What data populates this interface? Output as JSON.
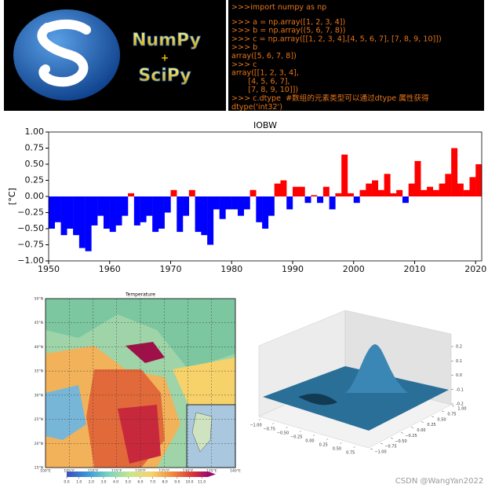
{
  "logo": {
    "name": "NumPy",
    "plus": "+",
    "name2": "SciPy"
  },
  "code": {
    "lines": [
      ">>>import numpy as np",
      ">>> a = np.array([1, 2, 3, 4])",
      ">>> b = np.array((5, 6, 7, 8))",
      ">>> c = np.array([[1, 2, 3, 4],[4, 5, 6, 7], [7, 8, 9, 10]])",
      ">>> b",
      "array([5, 6, 7, 8])",
      ">>> c",
      "array([[1, 2, 3, 4],",
      "       [4, 5, 6, 7],",
      "       [7, 8, 9, 10]])",
      ">>> c.dtype  #数组的元素类型可以通过dtype 属性获得",
      "dtype('int32')"
    ]
  },
  "watermark": "CSDN @WangYan2022",
  "chart_data": [
    {
      "type": "bar",
      "title": "IOBW",
      "y_label": "[°C]",
      "x": [
        1950,
        1951,
        1952,
        1953,
        1954,
        1955,
        1956,
        1957,
        1958,
        1959,
        1960,
        1961,
        1962,
        1963,
        1964,
        1965,
        1966,
        1967,
        1968,
        1969,
        1970,
        1971,
        1972,
        1973,
        1974,
        1975,
        1976,
        1977,
        1978,
        1979,
        1980,
        1981,
        1982,
        1983,
        1984,
        1985,
        1986,
        1987,
        1988,
        1989,
        1990,
        1991,
        1992,
        1993,
        1994,
        1995,
        1996,
        1997,
        1998,
        1999,
        2000,
        2001,
        2002,
        2003,
        2004,
        2005,
        2006,
        2007,
        2008,
        2009,
        2010,
        2011,
        2012,
        2013,
        2014,
        2015,
        2016,
        2017,
        2018,
        2019,
        2020
      ],
      "values": [
        -0.5,
        -0.4,
        -0.6,
        -0.5,
        -0.6,
        -0.8,
        -0.85,
        -0.45,
        -0.3,
        -0.5,
        -0.55,
        -0.45,
        -0.3,
        0.05,
        -0.45,
        -0.4,
        -0.3,
        -0.55,
        -0.5,
        -0.25,
        0.1,
        -0.55,
        -0.3,
        0.1,
        -0.55,
        -0.6,
        -0.75,
        -0.2,
        -0.35,
        -0.2,
        -0.2,
        -0.3,
        -0.2,
        0.1,
        -0.4,
        -0.5,
        -0.3,
        0.2,
        0.25,
        -0.2,
        0.15,
        0.15,
        -0.1,
        0.02,
        -0.1,
        0.15,
        -0.2,
        0.05,
        0.65,
        0.05,
        -0.1,
        0.1,
        0.2,
        0.25,
        0.1,
        0.35,
        0.05,
        0.1,
        -0.1,
        0.2,
        0.55,
        0.1,
        0.15,
        0.1,
        0.2,
        0.35,
        0.75,
        0.2,
        0.1,
        0.3,
        0.5
      ],
      "positive_color": "#ff0000",
      "negative_color": "#0000ff",
      "xlim": [
        1950,
        2021
      ],
      "xticks": [
        1950,
        1960,
        1970,
        1980,
        1990,
        2000,
        2010,
        2020
      ],
      "ylim": [
        -1,
        1
      ],
      "yticks": [
        {
          "value": -1,
          "label": "−1.00"
        },
        {
          "value": -0.75,
          "label": "−0.75"
        },
        {
          "value": -0.5,
          "label": "−0.50"
        },
        {
          "value": -0.25,
          "label": "−0.25"
        },
        {
          "value": 0,
          "label": "0.00"
        },
        {
          "value": 0.25,
          "label": "0.25"
        },
        {
          "value": 0.5,
          "label": "0.50"
        },
        {
          "value": 0.75,
          "label": "0.75"
        },
        {
          "value": 1,
          "label": "1.00"
        }
      ]
    },
    {
      "type": "map",
      "title": "Temperature",
      "xlim": [
        100,
        140
      ],
      "xticks": [
        {
          "value": 100,
          "label": "100°E"
        },
        {
          "value": 105,
          "label": "105°E"
        },
        {
          "value": 110,
          "label": "110°E"
        },
        {
          "value": 115,
          "label": "115°E"
        },
        {
          "value": 120,
          "label": "120°E"
        },
        {
          "value": 125,
          "label": "125°E"
        },
        {
          "value": 130,
          "label": "130°E"
        },
        {
          "value": 135,
          "label": "135°E"
        },
        {
          "value": 140,
          "label": "140°E"
        }
      ],
      "ylim": [
        15,
        50
      ],
      "yticks": [
        {
          "value": 15,
          "label": "15°N"
        },
        {
          "value": 20,
          "label": "20°N"
        },
        {
          "value": 25,
          "label": "25°N"
        },
        {
          "value": 30,
          "label": "30°N"
        },
        {
          "value": 35,
          "label": "35°N"
        },
        {
          "value": 40,
          "label": "40°N"
        },
        {
          "value": 45,
          "label": "45°N"
        },
        {
          "value": 50,
          "label": "50°N"
        }
      ],
      "clim": [
        0,
        11.5
      ],
      "cticks": [
        {
          "value": 0,
          "label": "0.0"
        },
        {
          "value": 1,
          "label": "1.0"
        },
        {
          "value": 2,
          "label": "2.0"
        },
        {
          "value": 3,
          "label": "3.0"
        },
        {
          "value": 4,
          "label": "4.0"
        },
        {
          "value": 5,
          "label": "5.0"
        },
        {
          "value": 6,
          "label": "6.0"
        },
        {
          "value": 7,
          "label": "7.0"
        },
        {
          "value": 8,
          "label": "8.0"
        },
        {
          "value": 9,
          "label": "9.0"
        },
        {
          "value": 10,
          "label": "10.0"
        },
        {
          "value": 11,
          "label": "11.0"
        }
      ]
    },
    {
      "type": "surface3d",
      "xlim": [
        -1,
        1
      ],
      "xticks": [
        {
          "value": -1,
          "label": "−1.00"
        },
        {
          "value": -0.75,
          "label": "−0.75"
        },
        {
          "value": -0.5,
          "label": "−0.50"
        },
        {
          "value": -0.25,
          "label": "−0.25"
        },
        {
          "value": 0,
          "label": "0.00"
        },
        {
          "value": 0.25,
          "label": "0.25"
        },
        {
          "value": 0.5,
          "label": "0.50"
        },
        {
          "value": 0.75,
          "label": "0.75"
        }
      ],
      "ylim": [
        -1,
        1
      ],
      "yticks": [
        {
          "value": -1,
          "label": "−1.00"
        },
        {
          "value": -0.75,
          "label": "−0.75"
        },
        {
          "value": -0.5,
          "label": "−0.50"
        },
        {
          "value": -0.25,
          "label": "−0.25"
        },
        {
          "value": 0,
          "label": "0.00"
        },
        {
          "value": 0.25,
          "label": "0.25"
        },
        {
          "value": 0.5,
          "label": "0.50"
        },
        {
          "value": 0.75,
          "label": "0.75"
        },
        {
          "value": 1,
          "label": "1.00"
        }
      ],
      "zlim": [
        -0.2,
        0.2
      ],
      "zticks": [
        -0.2,
        -0.1,
        {
          "value": 0,
          "label": "0.0"
        },
        0.1,
        0.2
      ]
    }
  ]
}
